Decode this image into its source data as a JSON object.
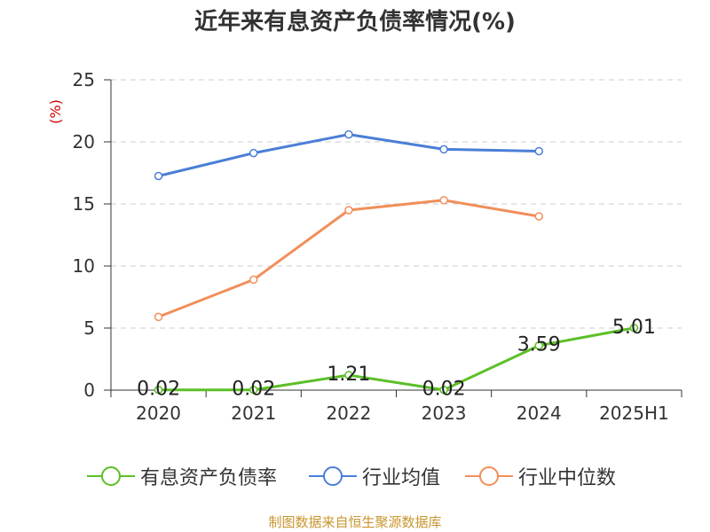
{
  "title": "近年来有息资产负债率情况(%)",
  "source": "制图数据来自恒生聚源数据库",
  "chart_data": {
    "type": "line",
    "categories": [
      "2020",
      "2021",
      "2022",
      "2023",
      "2024",
      "2025H1"
    ],
    "ylabel": "(%)",
    "ylim": [
      0,
      25
    ],
    "yticks": [
      0,
      5,
      10,
      15,
      20,
      25
    ],
    "grid": true,
    "legend_position": "bottom",
    "series": [
      {
        "name": "有息资产负债率",
        "color": "#5cbf26",
        "values": [
          0.02,
          0.02,
          1.21,
          0.02,
          3.59,
          5.01
        ],
        "labels": [
          "0.02",
          "0.02",
          "1.21",
          "0.02",
          "3.59",
          "5.01"
        ]
      },
      {
        "name": "行业均值",
        "color": "#4a7fd6",
        "values": [
          17.25,
          19.1,
          20.6,
          19.4,
          19.25,
          null
        ]
      },
      {
        "name": "行业中位数",
        "color": "#f28e5a",
        "values": [
          5.9,
          8.9,
          14.5,
          15.3,
          14.0,
          null
        ]
      }
    ]
  }
}
